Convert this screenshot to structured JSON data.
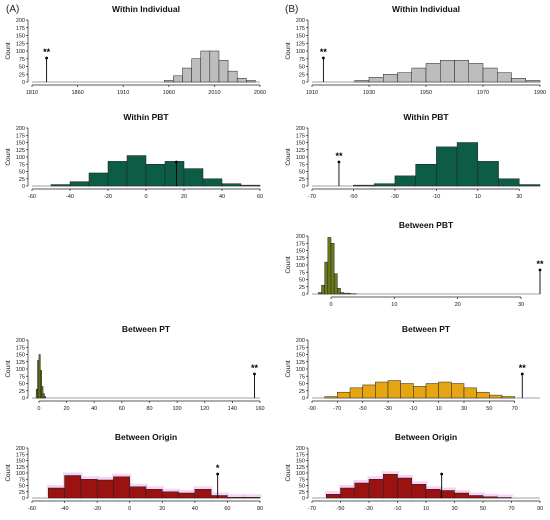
{
  "panel_letters": {
    "left": "(A)",
    "right": "(B)"
  },
  "colors": {
    "gray": "#bdbdbd",
    "green": "#0d5c46",
    "olive": "#6b7a1a",
    "amber": "#e6a512",
    "red": "#9a1212",
    "pink": "#f2c6f2",
    "axis": "#222222"
  },
  "chart_data": [
    {
      "id": "A-within-individual",
      "type": "bar",
      "title": "Within Individual",
      "ylabel": "Count",
      "color": "#bdbdbd",
      "xlim": [
        1810,
        2060
      ],
      "ylim": [
        0,
        200
      ],
      "xticks": [
        1810,
        1860,
        1910,
        1960,
        2010,
        2060
      ],
      "yticks": [
        0,
        25,
        50,
        75,
        100,
        125,
        150,
        175,
        200
      ],
      "bins": [
        {
          "x0": 1955,
          "x1": 1965,
          "y": 5
        },
        {
          "x0": 1965,
          "x1": 1975,
          "y": 20
        },
        {
          "x0": 1975,
          "x1": 1985,
          "y": 45
        },
        {
          "x0": 1985,
          "x1": 1995,
          "y": 75
        },
        {
          "x0": 1995,
          "x1": 2005,
          "y": 100
        },
        {
          "x0": 2005,
          "x1": 2015,
          "y": 100
        },
        {
          "x0": 2015,
          "x1": 2025,
          "y": 70
        },
        {
          "x0": 2025,
          "x1": 2035,
          "y": 35
        },
        {
          "x0": 2035,
          "x1": 2045,
          "y": 12
        },
        {
          "x0": 2045,
          "x1": 2055,
          "y": 5
        }
      ],
      "marker": {
        "x": 1826,
        "label": "**"
      }
    },
    {
      "id": "B-within-individual",
      "type": "bar",
      "title": "Within Individual",
      "ylabel": "Count",
      "color": "#bdbdbd",
      "xlim": [
        1910,
        1990
      ],
      "ylim": [
        0,
        200
      ],
      "xticks": [
        1910,
        1930,
        1950,
        1970,
        1990
      ],
      "yticks": [
        0,
        25,
        50,
        75,
        100,
        125,
        150,
        175,
        200
      ],
      "bins": [
        {
          "x0": 1925,
          "x1": 1930,
          "y": 5
        },
        {
          "x0": 1930,
          "x1": 1935,
          "y": 15
        },
        {
          "x0": 1935,
          "x1": 1940,
          "y": 25
        },
        {
          "x0": 1940,
          "x1": 1945,
          "y": 30
        },
        {
          "x0": 1945,
          "x1": 1950,
          "y": 45
        },
        {
          "x0": 1950,
          "x1": 1955,
          "y": 60
        },
        {
          "x0": 1955,
          "x1": 1960,
          "y": 70
        },
        {
          "x0": 1960,
          "x1": 1965,
          "y": 70
        },
        {
          "x0": 1965,
          "x1": 1970,
          "y": 60
        },
        {
          "x0": 1970,
          "x1": 1975,
          "y": 45
        },
        {
          "x0": 1975,
          "x1": 1980,
          "y": 30
        },
        {
          "x0": 1980,
          "x1": 1985,
          "y": 12
        },
        {
          "x0": 1985,
          "x1": 1990,
          "y": 5
        }
      ],
      "marker": {
        "x": 1914,
        "label": "**"
      }
    },
    {
      "id": "A-within-pbt",
      "type": "bar",
      "title": "Within PBT",
      "ylabel": "Count",
      "color": "#0d5c46",
      "xlim": [
        -60,
        60
      ],
      "ylim": [
        0,
        200
      ],
      "xticks": [
        -60,
        -40,
        -20,
        0,
        20,
        40,
        60
      ],
      "yticks": [
        0,
        25,
        50,
        75,
        100,
        125,
        150,
        175,
        200
      ],
      "bins": [
        {
          "x0": -50,
          "x1": -40,
          "y": 5
        },
        {
          "x0": -40,
          "x1": -30,
          "y": 15
        },
        {
          "x0": -30,
          "x1": -20,
          "y": 45
        },
        {
          "x0": -20,
          "x1": -10,
          "y": 85
        },
        {
          "x0": -10,
          "x1": 0,
          "y": 105
        },
        {
          "x0": 0,
          "x1": 10,
          "y": 75
        },
        {
          "x0": 10,
          "x1": 20,
          "y": 85
        },
        {
          "x0": 20,
          "x1": 30,
          "y": 60
        },
        {
          "x0": 30,
          "x1": 40,
          "y": 25
        },
        {
          "x0": 40,
          "x1": 50,
          "y": 8
        },
        {
          "x0": 50,
          "x1": 60,
          "y": 3
        }
      ],
      "marker": {
        "x": 16,
        "label": ""
      }
    },
    {
      "id": "B-within-pbt",
      "type": "bar",
      "title": "Within PBT",
      "ylabel": "Count",
      "color": "#0d5c46",
      "xlim": [
        -70,
        40
      ],
      "ylim": [
        0,
        200
      ],
      "xticks": [
        -70,
        -50,
        -30,
        -10,
        10,
        30
      ],
      "yticks": [
        0,
        25,
        50,
        75,
        100,
        125,
        150,
        175,
        200
      ],
      "bins": [
        {
          "x0": -50,
          "x1": -40,
          "y": 3
        },
        {
          "x0": -40,
          "x1": -30,
          "y": 8
        },
        {
          "x0": -30,
          "x1": -20,
          "y": 35
        },
        {
          "x0": -20,
          "x1": -10,
          "y": 75
        },
        {
          "x0": -10,
          "x1": 0,
          "y": 135
        },
        {
          "x0": 0,
          "x1": 10,
          "y": 150
        },
        {
          "x0": 10,
          "x1": 20,
          "y": 85
        },
        {
          "x0": 20,
          "x1": 30,
          "y": 25
        },
        {
          "x0": 30,
          "x1": 40,
          "y": 5
        }
      ],
      "marker": {
        "x": -57,
        "label": "**"
      }
    },
    {
      "id": "B-between-pbt",
      "type": "bar",
      "title": "Between PBT",
      "ylabel": "Count",
      "color": "#6b7a1a",
      "xlim": [
        -3,
        33
      ],
      "ylim": [
        0,
        200
      ],
      "xticks": [
        0,
        10,
        20,
        30
      ],
      "yticks": [
        0,
        25,
        50,
        75,
        100,
        125,
        150,
        175,
        200
      ],
      "bins": [
        {
          "x0": -2,
          "x1": -1.5,
          "y": 5
        },
        {
          "x0": -1.5,
          "x1": -1,
          "y": 30
        },
        {
          "x0": -1,
          "x1": -0.5,
          "y": 110
        },
        {
          "x0": -0.5,
          "x1": 0,
          "y": 195
        },
        {
          "x0": 0,
          "x1": 0.5,
          "y": 175
        },
        {
          "x0": 0.5,
          "x1": 1,
          "y": 70
        },
        {
          "x0": 1,
          "x1": 1.5,
          "y": 20
        },
        {
          "x0": 1.5,
          "x1": 2,
          "y": 5
        },
        {
          "x0": 2,
          "x1": 3,
          "y": 3
        },
        {
          "x0": 3,
          "x1": 4,
          "y": 1
        }
      ],
      "marker": {
        "x": 33,
        "label": "**"
      }
    },
    {
      "id": "A-between-pt",
      "type": "bar",
      "title": "Between PT",
      "ylabel": "Count",
      "color": "#6b7a1a",
      "xlim": [
        -5,
        160
      ],
      "ylim": [
        0,
        200
      ],
      "xticks": [
        0,
        20,
        40,
        60,
        80,
        100,
        120,
        140,
        160
      ],
      "yticks": [
        0,
        25,
        50,
        75,
        100,
        125,
        150,
        175,
        200
      ],
      "bins": [
        {
          "x0": -2,
          "x1": -1,
          "y": 30
        },
        {
          "x0": -1,
          "x1": 0,
          "y": 130
        },
        {
          "x0": 0,
          "x1": 1,
          "y": 150
        },
        {
          "x0": 1,
          "x1": 2,
          "y": 95
        },
        {
          "x0": 2,
          "x1": 3,
          "y": 40
        },
        {
          "x0": 3,
          "x1": 4,
          "y": 15
        },
        {
          "x0": 4,
          "x1": 5,
          "y": 5
        }
      ],
      "marker": {
        "x": 156,
        "label": "**"
      }
    },
    {
      "id": "B-between-pt",
      "type": "bar",
      "title": "Between PT",
      "ylabel": "Count",
      "color": "#e6a512",
      "xlim": [
        -90,
        90
      ],
      "ylim": [
        0,
        200
      ],
      "xticks": [
        -90,
        -70,
        -50,
        -30,
        -10,
        10,
        30,
        50,
        70
      ],
      "yticks": [
        0,
        25,
        50,
        75,
        100,
        125,
        150,
        175,
        200
      ],
      "bins": [
        {
          "x0": -80,
          "x1": -70,
          "y": 5
        },
        {
          "x0": -70,
          "x1": -60,
          "y": 20
        },
        {
          "x0": -60,
          "x1": -50,
          "y": 35
        },
        {
          "x0": -50,
          "x1": -40,
          "y": 45
        },
        {
          "x0": -40,
          "x1": -30,
          "y": 55
        },
        {
          "x0": -30,
          "x1": -20,
          "y": 60
        },
        {
          "x0": -20,
          "x1": -10,
          "y": 50
        },
        {
          "x0": -10,
          "x1": 0,
          "y": 40
        },
        {
          "x0": 0,
          "x1": 10,
          "y": 50
        },
        {
          "x0": 10,
          "x1": 20,
          "y": 55
        },
        {
          "x0": 20,
          "x1": 30,
          "y": 50
        },
        {
          "x0": 30,
          "x1": 40,
          "y": 35
        },
        {
          "x0": 40,
          "x1": 50,
          "y": 20
        },
        {
          "x0": 50,
          "x1": 60,
          "y": 10
        },
        {
          "x0": 60,
          "x1": 70,
          "y": 5
        }
      ],
      "marker": {
        "x": 76,
        "label": "**"
      }
    },
    {
      "id": "A-between-origin",
      "type": "bar",
      "title": "Between Origin",
      "ylabel": "Count",
      "color": "#9a1212",
      "xlim": [
        -60,
        80
      ],
      "ylim": [
        0,
        200
      ],
      "xticks": [
        -60,
        -40,
        -20,
        0,
        20,
        40,
        60,
        80
      ],
      "yticks": [
        0,
        25,
        50,
        75,
        100,
        125,
        150,
        175,
        200
      ],
      "bins": [
        {
          "x0": -50,
          "x1": -40,
          "y": 40
        },
        {
          "x0": -40,
          "x1": -30,
          "y": 90
        },
        {
          "x0": -30,
          "x1": -20,
          "y": 75
        },
        {
          "x0": -20,
          "x1": -10,
          "y": 72
        },
        {
          "x0": -10,
          "x1": 0,
          "y": 85
        },
        {
          "x0": 0,
          "x1": 10,
          "y": 45
        },
        {
          "x0": 10,
          "x1": 20,
          "y": 35
        },
        {
          "x0": 20,
          "x1": 30,
          "y": 25
        },
        {
          "x0": 30,
          "x1": 40,
          "y": 20
        },
        {
          "x0": 40,
          "x1": 50,
          "y": 35
        },
        {
          "x0": 50,
          "x1": 60,
          "y": 10
        },
        {
          "x0": 60,
          "x1": 70,
          "y": 3
        },
        {
          "x0": 70,
          "x1": 80,
          "y": 3
        }
      ],
      "marker": {
        "x": 54,
        "label": "*"
      }
    },
    {
      "id": "B-between-origin",
      "type": "bar",
      "title": "Between Origin",
      "ylabel": "Count",
      "color": "#9a1212",
      "xlim": [
        -70,
        90
      ],
      "ylim": [
        0,
        200
      ],
      "xticks": [
        -70,
        -50,
        -30,
        -10,
        10,
        30,
        50,
        70,
        90
      ],
      "yticks": [
        0,
        25,
        50,
        75,
        100,
        125,
        150,
        175,
        200
      ],
      "bins": [
        {
          "x0": -60,
          "x1": -50,
          "y": 15
        },
        {
          "x0": -50,
          "x1": -40,
          "y": 40
        },
        {
          "x0": -40,
          "x1": -30,
          "y": 60
        },
        {
          "x0": -30,
          "x1": -20,
          "y": 75
        },
        {
          "x0": -20,
          "x1": -10,
          "y": 95
        },
        {
          "x0": -10,
          "x1": 0,
          "y": 80
        },
        {
          "x0": 0,
          "x1": 10,
          "y": 55
        },
        {
          "x0": 10,
          "x1": 20,
          "y": 35
        },
        {
          "x0": 20,
          "x1": 30,
          "y": 30
        },
        {
          "x0": 30,
          "x1": 40,
          "y": 20
        },
        {
          "x0": 40,
          "x1": 50,
          "y": 10
        },
        {
          "x0": 50,
          "x1": 60,
          "y": 5
        },
        {
          "x0": 60,
          "x1": 70,
          "y": 2
        }
      ],
      "marker": {
        "x": 21,
        "label": ""
      }
    }
  ]
}
